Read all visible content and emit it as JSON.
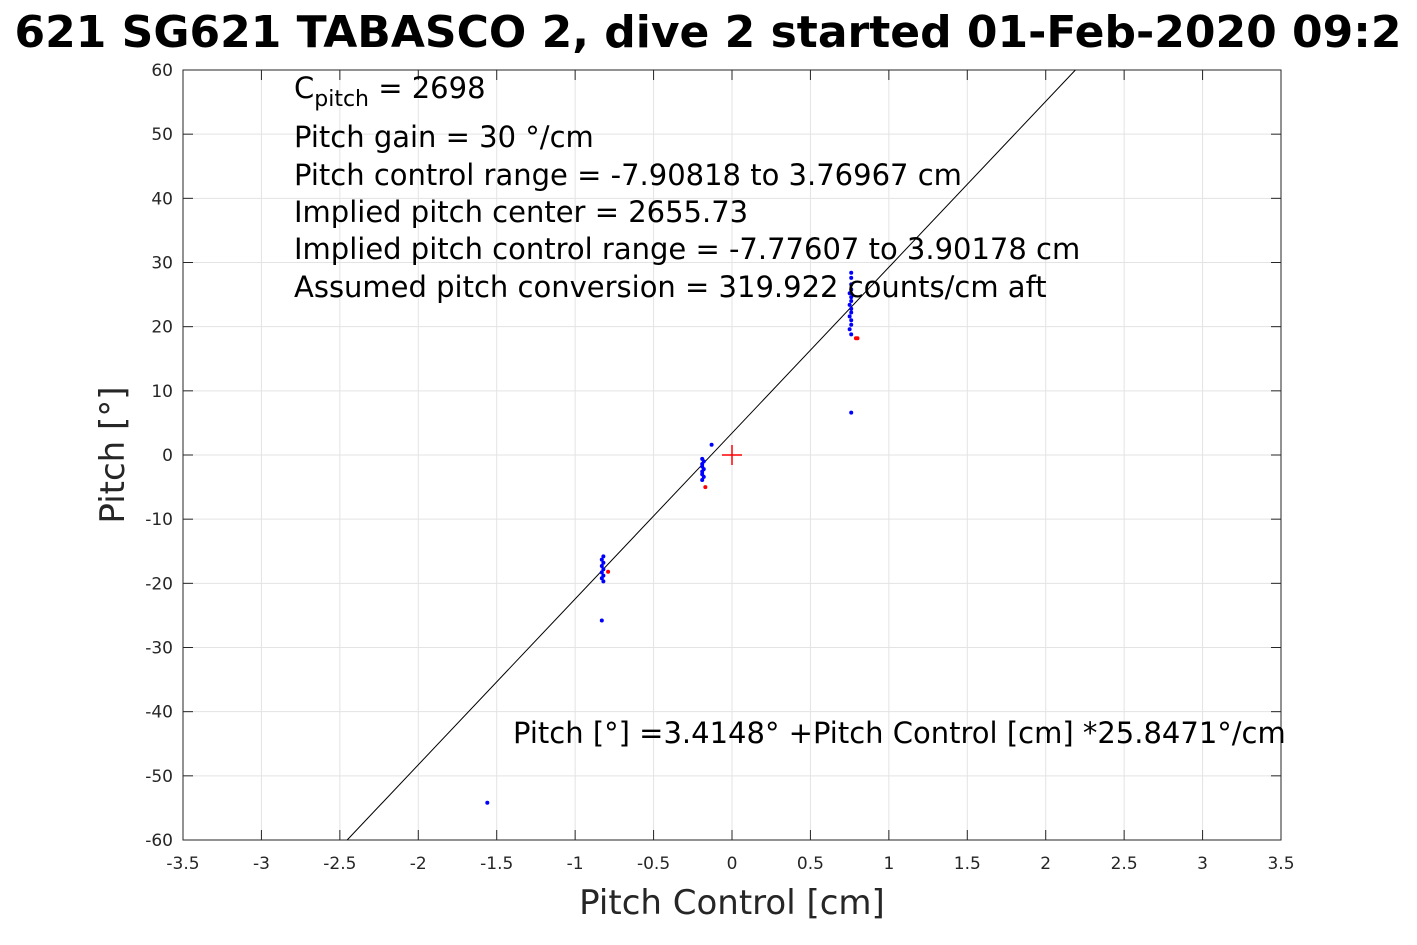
{
  "chart_data": {
    "type": "scatter",
    "title": "621 SG621 TABASCO 2, dive 2 started 01-Feb-2020 09:2",
    "xlabel": "Pitch Control [cm]",
    "ylabel": "Pitch [°]",
    "xlim": [
      -3.5,
      3.5
    ],
    "ylim": [
      -60,
      60
    ],
    "x_ticks": [
      -3.5,
      -3,
      -2.5,
      -2,
      -1.5,
      -1,
      -0.5,
      0,
      0.5,
      1,
      1.5,
      2,
      2.5,
      3,
      3.5
    ],
    "x_tick_labels": [
      "-3.5",
      "-3",
      "-2.5",
      "-2",
      "-1.5",
      "-1",
      "-0.5",
      "0",
      "0.5",
      "1",
      "1.5",
      "2",
      "2.5",
      "3",
      "3.5"
    ],
    "y_ticks": [
      60,
      50,
      40,
      30,
      20,
      10,
      0,
      -10,
      -20,
      -30,
      -40,
      -50,
      -60
    ],
    "y_tick_labels": [
      "60",
      "50",
      "40",
      "30",
      "20",
      "10",
      "0",
      "-10",
      "-20",
      "-30",
      "-40",
      "-50",
      "-60"
    ],
    "grid": true,
    "annotations": {
      "c_pitch_main": "C",
      "c_pitch_sub": "pitch",
      "c_pitch_value": " = 2698",
      "gain": "Pitch gain = 30 °/cm",
      "control_range": "Pitch control range = -7.90818 to 3.76967 cm",
      "implied_center": "Implied pitch center = 2655.73",
      "implied_range": "Implied pitch control range = -7.77607 to 3.90178 cm",
      "conversion": "Assumed pitch conversion = 319.922 counts/cm aft",
      "fit_equation": "Pitch [°] =3.4148° +Pitch Control [cm] *25.8471°/cm"
    },
    "fit_line": {
      "intercept": 3.4148,
      "slope": 25.8471,
      "color": "#000000"
    },
    "marker": {
      "x": 0,
      "y": 0,
      "color": "#ff0000",
      "shape": "plus"
    },
    "series": [
      {
        "color": "#0000ff",
        "points": [
          [
            -1.56,
            -54.2
          ],
          [
            -0.83,
            -25.8
          ],
          [
            -0.82,
            -15.8
          ],
          [
            -0.83,
            -16.3
          ],
          [
            -0.82,
            -16.8
          ],
          [
            -0.83,
            -17.3
          ],
          [
            -0.82,
            -17.8
          ],
          [
            -0.83,
            -18.3
          ],
          [
            -0.82,
            -18.8
          ],
          [
            -0.83,
            -19.2
          ],
          [
            -0.82,
            -19.7
          ],
          [
            -0.13,
            1.6
          ],
          [
            -0.19,
            -0.6
          ],
          [
            -0.18,
            -1.0
          ],
          [
            -0.19,
            -1.4
          ],
          [
            -0.19,
            -1.8
          ],
          [
            -0.18,
            -2.2
          ],
          [
            -0.19,
            -2.6
          ],
          [
            -0.19,
            -3.0
          ],
          [
            -0.18,
            -3.4
          ],
          [
            -0.19,
            -3.9
          ],
          [
            0.76,
            6.6
          ],
          [
            0.76,
            18.8
          ],
          [
            0.75,
            19.6
          ],
          [
            0.76,
            20.3
          ],
          [
            0.76,
            21.0
          ],
          [
            0.75,
            21.6
          ],
          [
            0.76,
            22.2
          ],
          [
            0.76,
            22.8
          ],
          [
            0.75,
            23.4
          ],
          [
            0.76,
            24.0
          ],
          [
            0.76,
            24.6
          ],
          [
            0.75,
            25.2
          ],
          [
            0.76,
            25.8
          ],
          [
            0.76,
            26.6
          ],
          [
            0.76,
            27.6
          ],
          [
            0.76,
            28.4
          ]
        ]
      },
      {
        "color": "#ff0000",
        "points": [
          [
            -0.79,
            -18.2
          ],
          [
            -0.17,
            -5.0
          ],
          [
            0.79,
            18.2
          ],
          [
            0.8,
            18.2
          ]
        ]
      }
    ]
  }
}
